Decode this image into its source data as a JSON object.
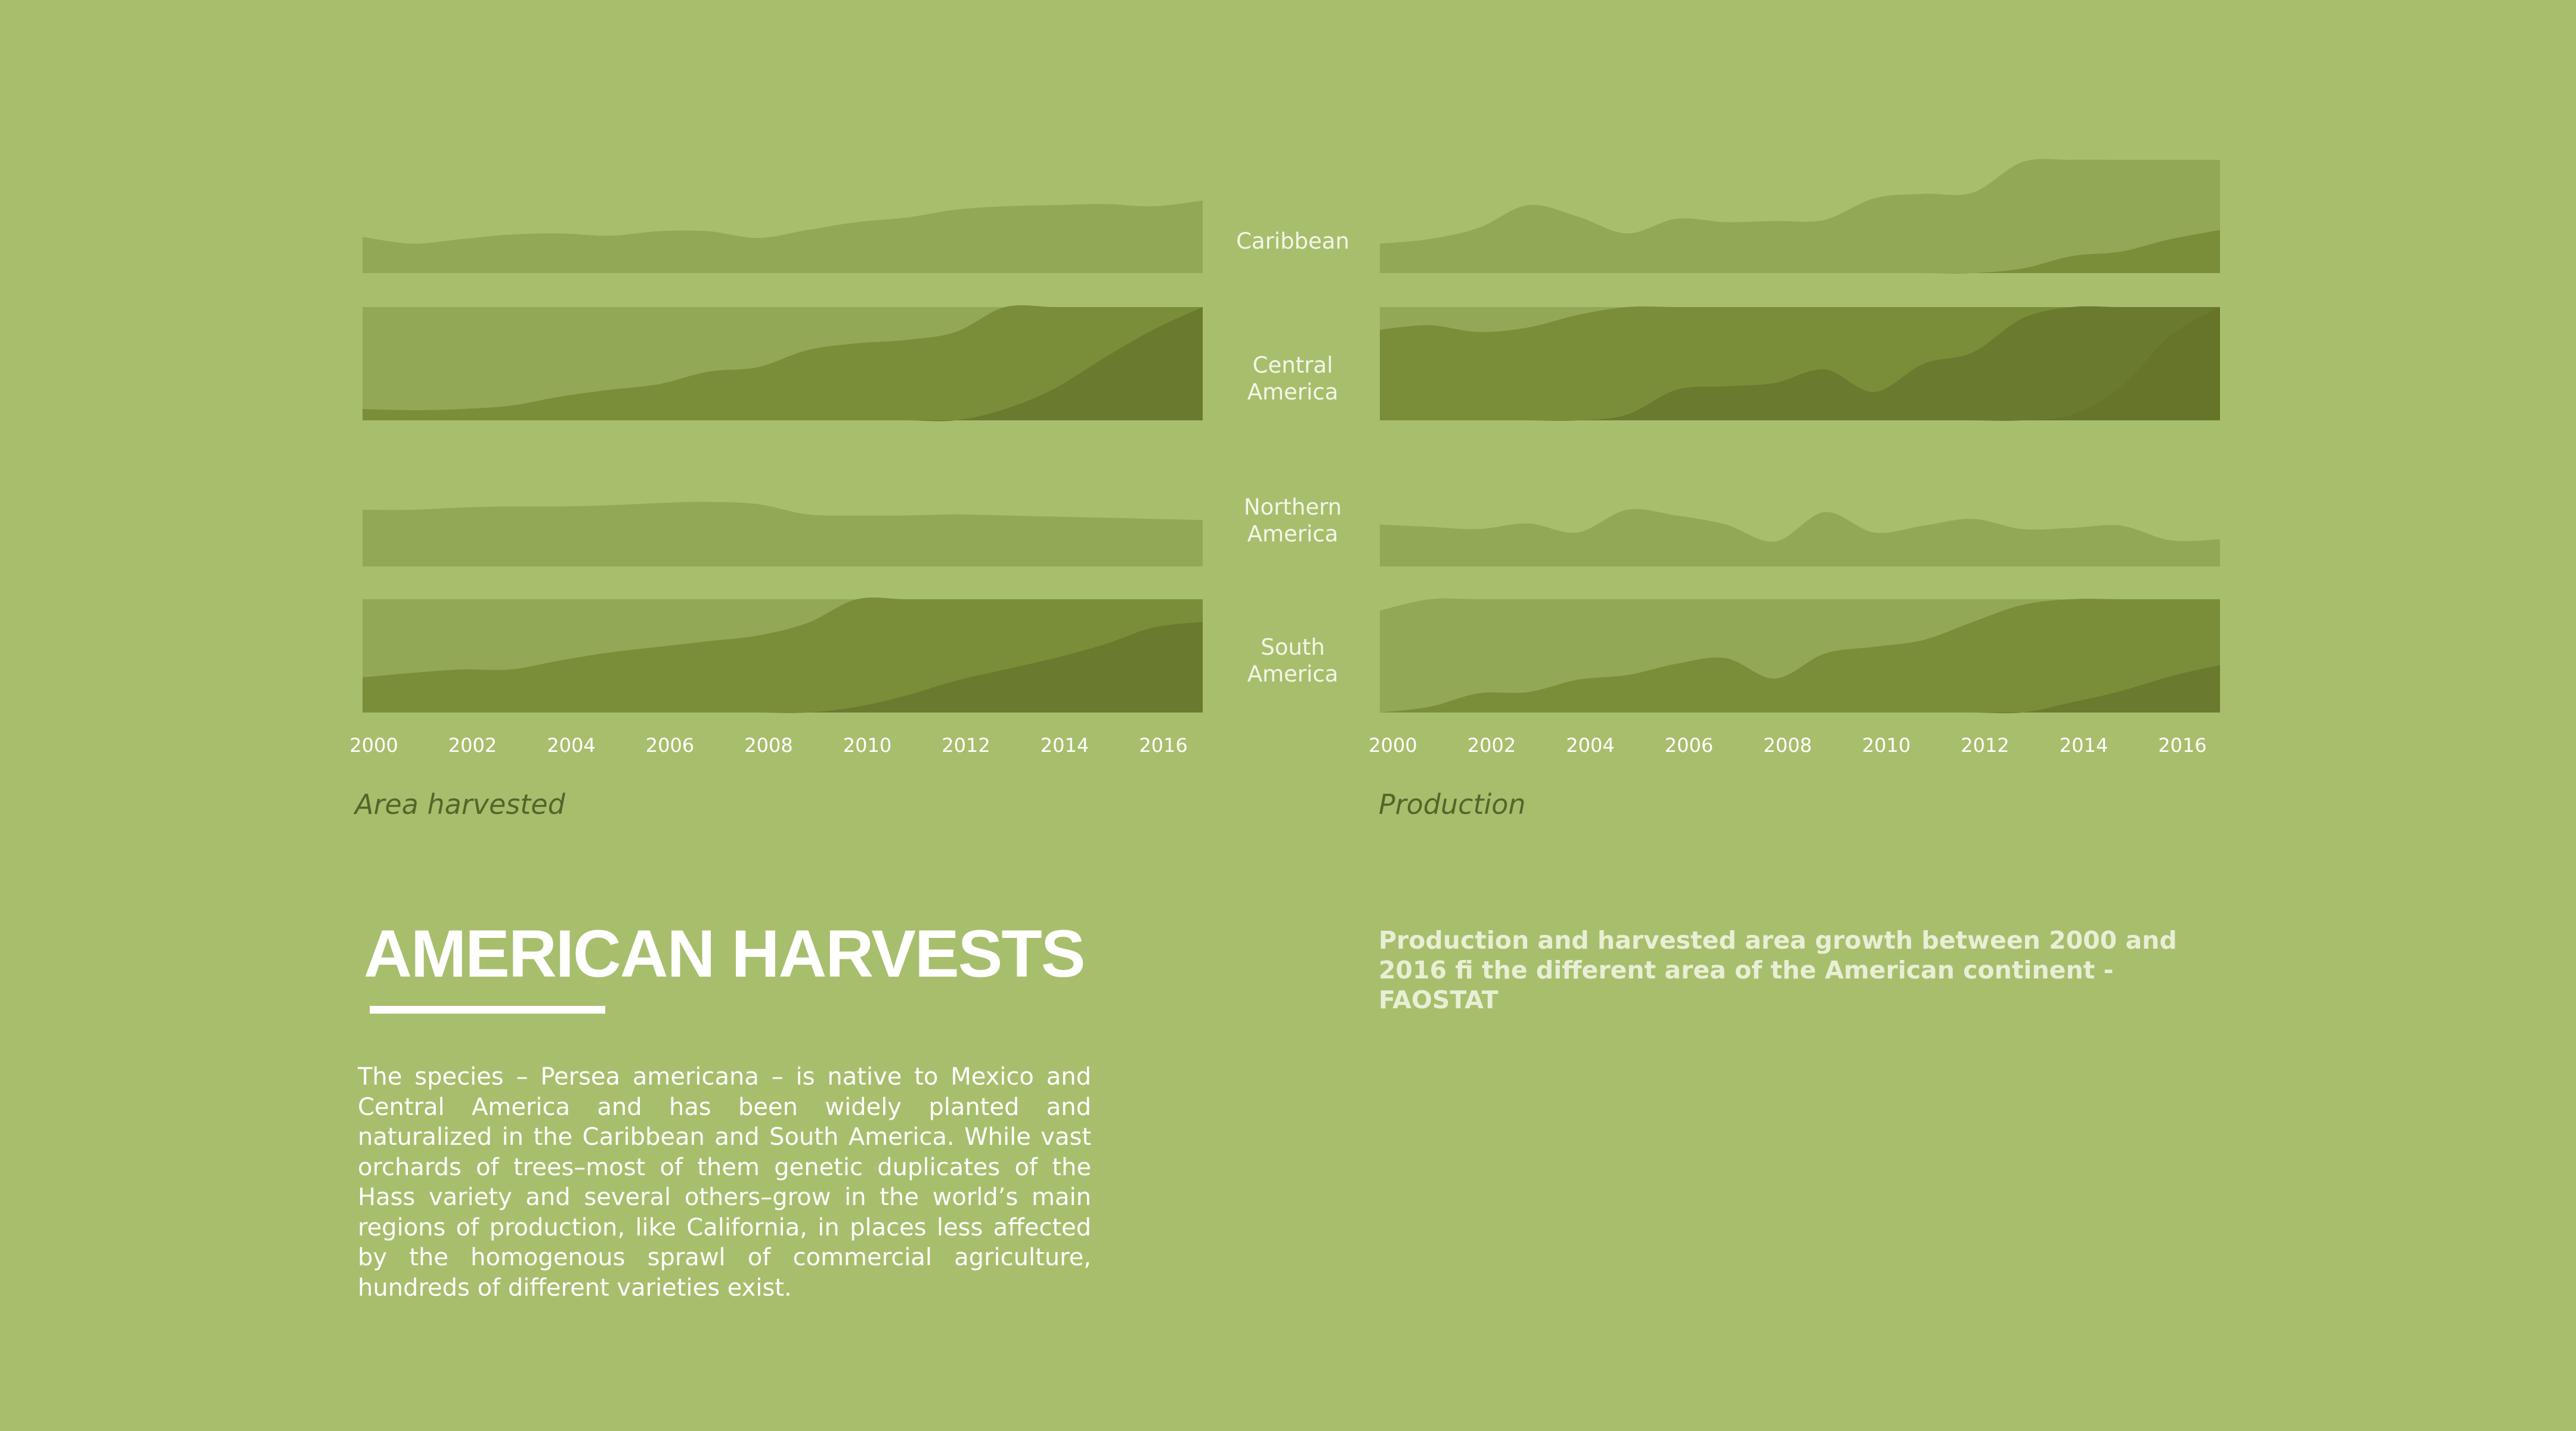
{
  "title": "AMERICAN HARVESTS",
  "subtitle": "Production and harvested area growth between 2000 and 2016 fi the different area of the American continent - FAOSTAT",
  "body_text": "The species – Persea americana – is native to Mexico and Central America and has been widely planted and naturalized in the Caribbean and South America. While vast orchards of trees–most of them genetic duplicates of the Hass variety and several others–grow in the world’s main regions of production, like California, in places less affected by the homogenous sprawl of commercial agriculture, hundreds of different varieties exist.",
  "regions": [
    {
      "label_1": "Caribbean",
      "label_2": ""
    },
    {
      "label_1": "Central",
      "label_2": "America"
    },
    {
      "label_1": "Northern",
      "label_2": "America"
    },
    {
      "label_1": "South",
      "label_2": "America"
    }
  ],
  "colors": {
    "background": "#a7bf6d",
    "light": "#93a857",
    "medium": "#7a8e3a",
    "dark": "#6a7a2e",
    "text_light": "#ffffff",
    "caption": "#55652a"
  },
  "chart_data": [
    {
      "type": "area",
      "title": "Area harvested",
      "x": [
        2000,
        2001,
        2002,
        2003,
        2004,
        2005,
        2006,
        2007,
        2008,
        2009,
        2010,
        2011,
        2012,
        2013,
        2014,
        2015,
        2016,
        2017
      ],
      "x_ticks": [
        "2000",
        "2002",
        "2004",
        "2006",
        "2008",
        "2010",
        "2012",
        "2014",
        "2016"
      ],
      "x_domain": [
        2000,
        2017
      ],
      "scale": "relative",
      "panels": [
        {
          "region": "Caribbean",
          "mode": "single",
          "series": [
            {
              "values": [
                0.32,
                0.26,
                0.3,
                0.34,
                0.35,
                0.33,
                0.37,
                0.37,
                0.31,
                0.38,
                0.45,
                0.49,
                0.56,
                0.59,
                0.6,
                0.61,
                0.59,
                0.64
              ]
            }
          ]
        },
        {
          "region": "Central America",
          "mode": "stacked",
          "series": [
            {
              "level": "light",
              "values": [
                1,
                1,
                1,
                1,
                1,
                1,
                1,
                1,
                1,
                1,
                1,
                1,
                1,
                1,
                1,
                1,
                1,
                1
              ]
            },
            {
              "level": "medium",
              "values": [
                0.1,
                0.09,
                0.1,
                0.13,
                0.21,
                0.27,
                0.32,
                0.43,
                0.47,
                0.62,
                0.68,
                0.71,
                0.78,
                1.0,
                1.0,
                1.0,
                1.0,
                1.0
              ]
            },
            {
              "level": "dark",
              "values": [
                0,
                0,
                0,
                0,
                0,
                0,
                0,
                0,
                0,
                0,
                0,
                0,
                0,
                0.1,
                0.28,
                0.55,
                0.8,
                1.0
              ]
            }
          ]
        },
        {
          "region": "Northern America",
          "mode": "single",
          "series": [
            {
              "values": [
                0.5,
                0.5,
                0.52,
                0.53,
                0.53,
                0.54,
                0.56,
                0.57,
                0.55,
                0.46,
                0.45,
                0.45,
                0.46,
                0.45,
                0.44,
                0.43,
                0.42,
                0.41
              ]
            }
          ]
        },
        {
          "region": "South America",
          "mode": "stacked",
          "series": [
            {
              "level": "light",
              "values": [
                1,
                1,
                1,
                1,
                1,
                1,
                1,
                1,
                1,
                1,
                1,
                1,
                1,
                1,
                1,
                1,
                1,
                1
              ]
            },
            {
              "level": "medium",
              "values": [
                0.31,
                0.35,
                0.38,
                0.38,
                0.46,
                0.53,
                0.58,
                0.63,
                0.68,
                0.79,
                1.0,
                1.0,
                1.0,
                1.0,
                1.0,
                1.0,
                1.0,
                1.0
              ]
            },
            {
              "level": "dark",
              "values": [
                0,
                0,
                0,
                0,
                0,
                0,
                0,
                0,
                0,
                0,
                0.05,
                0.15,
                0.28,
                0.38,
                0.48,
                0.6,
                0.75,
                0.8
              ]
            }
          ]
        }
      ]
    },
    {
      "type": "area",
      "title": "Production",
      "x": [
        2000,
        2001,
        2002,
        2003,
        2004,
        2005,
        2006,
        2007,
        2008,
        2009,
        2010,
        2011,
        2012,
        2013,
        2014,
        2015,
        2016,
        2017
      ],
      "x_ticks": [
        "2000",
        "2002",
        "2004",
        "2006",
        "2008",
        "2010",
        "2012",
        "2014",
        "2016"
      ],
      "x_domain": [
        2000,
        2017
      ],
      "scale": "relative",
      "panels": [
        {
          "region": "Caribbean",
          "mode": "stacked",
          "series": [
            {
              "level": "light",
              "values": [
                0.26,
                0.3,
                0.4,
                0.6,
                0.5,
                0.35,
                0.48,
                0.45,
                0.46,
                0.47,
                0.66,
                0.7,
                0.71,
                0.98,
                1.0,
                1.0,
                1.0,
                1.0
              ]
            },
            {
              "level": "medium",
              "values": [
                0,
                0,
                0,
                0,
                0,
                0,
                0,
                0,
                0,
                0,
                0,
                0,
                0,
                0.04,
                0.15,
                0.19,
                0.3,
                0.38
              ]
            }
          ]
        },
        {
          "region": "Central America",
          "mode": "stacked",
          "series": [
            {
              "level": "light",
              "values": [
                1,
                1,
                1,
                1,
                1,
                1,
                1,
                1,
                1,
                1,
                1,
                1,
                1,
                1,
                1,
                1,
                1,
                1
              ]
            },
            {
              "level": "medium",
              "values": [
                0.8,
                0.84,
                0.78,
                0.82,
                0.93,
                1.0,
                1.0,
                1.0,
                1.0,
                1.0,
                1.0,
                1.0,
                1.0,
                1.0,
                1.0,
                1.0,
                1.0,
                1.0
              ]
            },
            {
              "level": "dark",
              "values": [
                0,
                0,
                0,
                0,
                0,
                0.05,
                0.27,
                0.3,
                0.33,
                0.45,
                0.25,
                0.5,
                0.6,
                0.9,
                1.0,
                1.0,
                1.0,
                1.0
              ]
            },
            {
              "level": "darker",
              "values": [
                0,
                0,
                0,
                0,
                0,
                0,
                0,
                0,
                0,
                0,
                0,
                0,
                0,
                0,
                0.05,
                0.3,
                0.75,
                1.0
              ]
            }
          ]
        },
        {
          "region": "Northern America",
          "mode": "single",
          "series": [
            {
              "values": [
                0.37,
                0.35,
                0.33,
                0.38,
                0.3,
                0.5,
                0.45,
                0.37,
                0.22,
                0.48,
                0.3,
                0.36,
                0.42,
                0.33,
                0.34,
                0.36,
                0.23,
                0.24
              ]
            }
          ]
        },
        {
          "region": "South America",
          "mode": "stacked",
          "series": [
            {
              "level": "light",
              "values": [
                0.9,
                1.0,
                1.0,
                1.0,
                1.0,
                1.0,
                1.0,
                1.0,
                1.0,
                1.0,
                1.0,
                1.0,
                1.0,
                1.0,
                1.0,
                1.0,
                1.0,
                1.0
              ]
            },
            {
              "level": "medium",
              "values": [
                0,
                0.05,
                0.17,
                0.18,
                0.29,
                0.33,
                0.43,
                0.48,
                0.3,
                0.52,
                0.58,
                0.64,
                0.8,
                0.95,
                1.0,
                1.0,
                1.0,
                1.0
              ]
            },
            {
              "level": "dark",
              "values": [
                0,
                0,
                0,
                0,
                0,
                0,
                0,
                0,
                0,
                0,
                0,
                0,
                0,
                0,
                0.09,
                0.19,
                0.32,
                0.42
              ]
            }
          ]
        }
      ]
    }
  ]
}
